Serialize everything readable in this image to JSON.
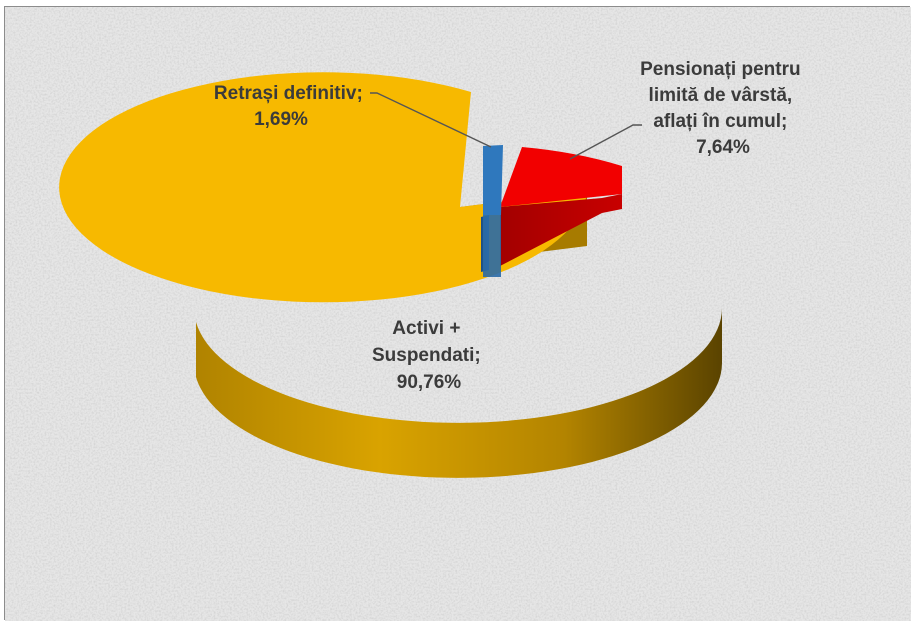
{
  "chart_data": {
    "type": "pie",
    "style": "3d-exploded",
    "slices": [
      {
        "label_lines": [
          "Activi +",
          "Suspendati;"
        ],
        "value_text": "90,76%",
        "value": 90.76,
        "color": "#f5b800"
      },
      {
        "label_lines": [
          "Retrași definitiv;"
        ],
        "value_text": "1,69%",
        "value": 1.69,
        "color": "#2e75b6"
      },
      {
        "label_lines": [
          "Pensionați pentru",
          "limită de vârstă,",
          "aflați în cumul;"
        ],
        "value_text": "7,64%",
        "value": 7.64,
        "color": "#ee0000"
      }
    ]
  },
  "colors": {
    "background": "#e6e6e6",
    "border": "#8c8c8c",
    "label_text": "#3b3b3b",
    "leader_line": "#555555"
  }
}
